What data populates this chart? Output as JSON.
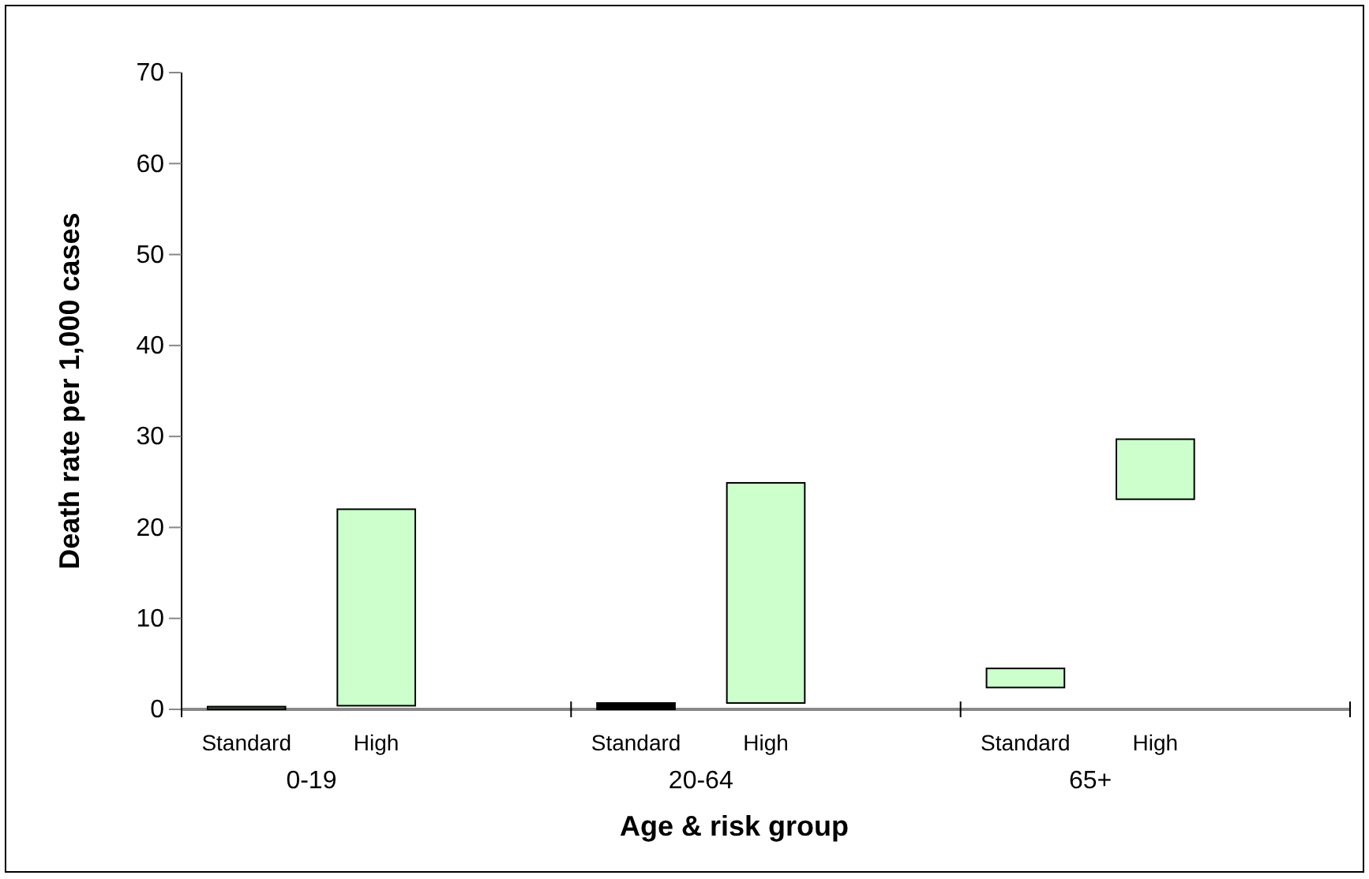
{
  "chart_data": {
    "type": "bar",
    "categories": [
      "Standard",
      "High",
      null,
      "Standard",
      "High",
      null,
      "Standard",
      "High",
      null
    ],
    "base": [
      0,
      0.4,
      null,
      0,
      0.7,
      null,
      2.4,
      23.1,
      null
    ],
    "values": [
      0.3,
      21.6,
      null,
      0.7,
      24.2,
      null,
      2.1,
      6.6,
      null
    ],
    "colors": [
      "#4d5e4d",
      "#ccffcc",
      null,
      "#000000",
      "#ccffcc",
      null,
      "#ccffcc",
      "#ccffcc",
      null
    ],
    "annotations": [
      "0-19",
      "20-64",
      "65+"
    ],
    "xlabel": "Age & risk group",
    "ylabel": "Death rate per 1,000 cases",
    "ylim": [
      0,
      70
    ],
    "yticks": [
      0,
      10,
      20,
      30,
      40,
      50,
      60,
      70
    ],
    "grid": false
  }
}
